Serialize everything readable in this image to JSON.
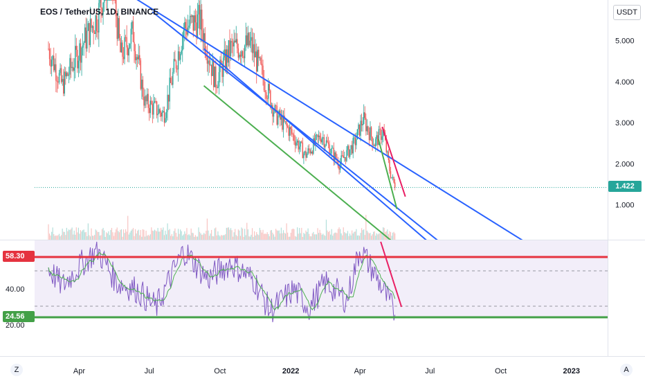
{
  "header": {
    "title": "EOS / TetherUS, 1D, BINANCE",
    "currency": "USDT"
  },
  "price_axis": {
    "ticks": [
      "5.000",
      "4.000",
      "3.000",
      "2.000",
      "1.000"
    ]
  },
  "rsi_axis": {
    "ticks": [
      "40.00",
      "20.00"
    ]
  },
  "time_axis": {
    "ticks": [
      "Apr",
      "Jul",
      "Oct",
      "2022",
      "Apr",
      "Jul",
      "Oct",
      "2023"
    ]
  },
  "badges": {
    "last_price": "1.422",
    "rsi_upper": "58.30",
    "rsi_lower": "24.56"
  },
  "buttons": {
    "z": "Z",
    "a": "A"
  },
  "colors": {
    "up": "#26a69a",
    "down": "#ef5350",
    "channel": "#2962ff",
    "support": "#4caf50",
    "trend_red": "#e91e63",
    "rsi": "#7e57c2",
    "rsi_ma": "#4caf50",
    "rsi_band": "#ede7f6"
  },
  "chart_data": {
    "type": "candlestick",
    "symbol": "EOS / TetherUS",
    "interval": "1D",
    "exchange": "BINANCE",
    "last_price": 1.422,
    "price_range": [
      0,
      6
    ],
    "price_points": [
      {
        "date": "2021-02-20",
        "close": 4.8
      },
      {
        "date": "2021-03-10",
        "close": 3.9
      },
      {
        "date": "2021-04-05",
        "close": 4.9
      },
      {
        "date": "2021-04-25",
        "close": 5.6
      },
      {
        "date": "2021-05-12",
        "close": 6.8
      },
      {
        "date": "2021-05-25",
        "close": 4.6
      },
      {
        "date": "2021-06-10",
        "close": 5.2
      },
      {
        "date": "2021-06-25",
        "close": 3.5
      },
      {
        "date": "2021-07-20",
        "close": 3.2
      },
      {
        "date": "2021-08-15",
        "close": 5.3
      },
      {
        "date": "2021-09-05",
        "close": 5.5
      },
      {
        "date": "2021-09-25",
        "close": 4.0
      },
      {
        "date": "2021-10-15",
        "close": 4.8
      },
      {
        "date": "2021-11-10",
        "close": 4.9
      },
      {
        "date": "2021-11-28",
        "close": 4.0
      },
      {
        "date": "2021-12-12",
        "close": 3.2
      },
      {
        "date": "2021-12-31",
        "close": 2.8
      },
      {
        "date": "2022-01-20",
        "close": 2.2
      },
      {
        "date": "2022-02-10",
        "close": 2.7
      },
      {
        "date": "2022-03-05",
        "close": 2.0
      },
      {
        "date": "2022-03-25",
        "close": 2.5
      },
      {
        "date": "2022-04-05",
        "close": 3.1
      },
      {
        "date": "2022-04-20",
        "close": 2.5
      },
      {
        "date": "2022-05-01",
        "close": 2.8
      },
      {
        "date": "2022-05-10",
        "close": 1.8
      },
      {
        "date": "2022-05-17",
        "close": 1.42
      }
    ],
    "rsi_range": [
      10,
      75
    ],
    "rsi_levels": [
      58.3,
      24.56
    ],
    "rsi_points": [
      {
        "date": "2021-02-20",
        "rsi": 52
      },
      {
        "date": "2021-03-10",
        "rsi": 42
      },
      {
        "date": "2021-04-05",
        "rsi": 55
      },
      {
        "date": "2021-04-25",
        "rsi": 62
      },
      {
        "date": "2021-05-20",
        "rsi": 44
      },
      {
        "date": "2021-06-15",
        "rsi": 40
      },
      {
        "date": "2021-07-10",
        "rsi": 30
      },
      {
        "date": "2021-08-15",
        "rsi": 62
      },
      {
        "date": "2021-09-15",
        "rsi": 46
      },
      {
        "date": "2021-10-15",
        "rsi": 55
      },
      {
        "date": "2021-11-15",
        "rsi": 45
      },
      {
        "date": "2021-12-05",
        "rsi": 28
      },
      {
        "date": "2022-01-05",
        "rsi": 40
      },
      {
        "date": "2022-01-25",
        "rsi": 30
      },
      {
        "date": "2022-02-15",
        "rsi": 44
      },
      {
        "date": "2022-03-15",
        "rsi": 34
      },
      {
        "date": "2022-04-01",
        "rsi": 63
      },
      {
        "date": "2022-04-25",
        "rsi": 45
      },
      {
        "date": "2022-05-17",
        "rsi": 26
      }
    ],
    "trendlines": [
      {
        "name": "",
        "color": "#2962ff",
        "from": {
          "date": "2021-06-15",
          "value": 6.0
        },
        "to": {
          "date": "2022-11-10",
          "value": 0
        }
      },
      {
        "name": "",
        "color": "#2962ff",
        "from": {
          "date": "2021-07-05",
          "value": 5.7
        },
        "to": {
          "date": "2022-07-20",
          "value": 0
        }
      },
      {
        "name": "",
        "color": "#2962ff",
        "from": {
          "date": "2021-09-10",
          "value": 4.8
        },
        "to": {
          "date": "2022-07-05",
          "value": 0
        }
      },
      {
        "name": "",
        "color": "#4caf50",
        "from": {
          "date": "2021-09-10",
          "value": 3.9
        },
        "to": {
          "date": "2022-05-20",
          "value": 0
        }
      },
      {
        "name": "",
        "color": "#e91e63",
        "from": {
          "date": "2022-04-30",
          "value": 2.9
        },
        "to": {
          "date": "2022-05-30",
          "value": 1.2
        }
      }
    ],
    "time_ticks": [
      "Apr",
      "Jul",
      "Oct",
      "2022",
      "Apr",
      "Jul",
      "Oct",
      "2023"
    ],
    "y_ticks": [
      "5.000",
      "4.000",
      "3.000",
      "2.000",
      "1.000"
    ]
  }
}
